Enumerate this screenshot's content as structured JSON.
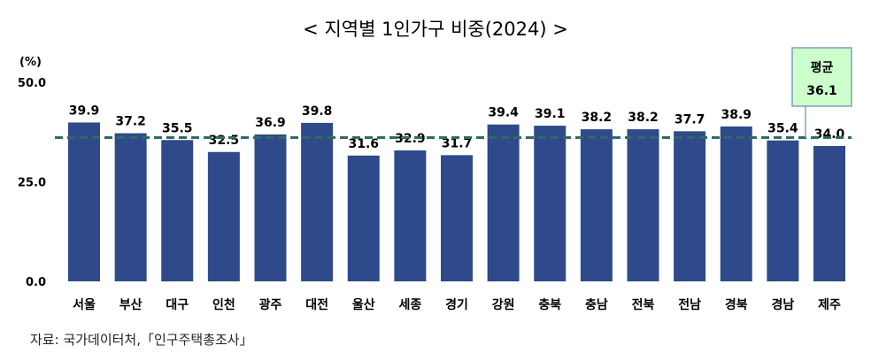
{
  "chart_data": {
    "type": "bar",
    "title": "< 지역별 1인가구 비중(2024) >",
    "ylabel": "(%)",
    "xlabel": "",
    "ylim": [
      0,
      50
    ],
    "yticks": [
      "0.0",
      "25.0",
      "50.0"
    ],
    "ytick_values": [
      0,
      25,
      50
    ],
    "grid": false,
    "categories": [
      "서울",
      "부산",
      "대구",
      "인천",
      "광주",
      "대전",
      "울산",
      "세종",
      "경기",
      "강원",
      "충북",
      "충남",
      "전북",
      "전남",
      "경북",
      "경남",
      "제주"
    ],
    "values": [
      39.9,
      37.2,
      35.5,
      32.5,
      36.9,
      39.8,
      31.6,
      32.9,
      31.7,
      39.4,
      39.1,
      38.2,
      38.2,
      37.7,
      38.9,
      35.4,
      34.0
    ],
    "value_labels": [
      "39.9",
      "37.2",
      "35.5",
      "32.5",
      "36.9",
      "39.8",
      "31.6",
      "32.9",
      "31.7",
      "39.4",
      "39.1",
      "38.2",
      "38.2",
      "37.7",
      "38.9",
      "35.4",
      "34.0"
    ],
    "average": {
      "label": "평균",
      "value": 36.1,
      "value_label": "36.1"
    },
    "bar_color": "#2f4a8a",
    "average_line_color": "#2e6b62",
    "callout_fill": "#ccffcc",
    "callout_border": "#7f9fbf"
  },
  "source": "자료:  국가데이터처,「인구주택총조사」"
}
